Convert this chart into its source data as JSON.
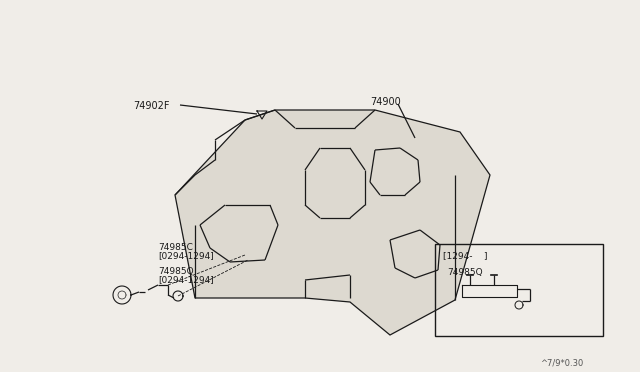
{
  "bg_color": "#f0ede8",
  "line_color": "#1a1a1a",
  "fill_color": "#e8e4dc",
  "carpet_fill": "#ddd9d0",
  "part_74900": "74900",
  "part_74902F": "74902F",
  "part_74985C": "74985C",
  "part_74985C_date": "[0294-1294]",
  "part_74985Q": "74985Q",
  "part_74985Q_date": "[0294-1294]",
  "inset_header": "[1294-    ]",
  "inset_part": "74985Q",
  "diagram_code": "^7/9*0.30",
  "carpet_outer_x": [
    175,
    240,
    270,
    370,
    460,
    490,
    455,
    390,
    345,
    305,
    195,
    175
  ],
  "carpet_outer_y": [
    195,
    120,
    108,
    108,
    130,
    175,
    300,
    335,
    300,
    295,
    295,
    195
  ]
}
